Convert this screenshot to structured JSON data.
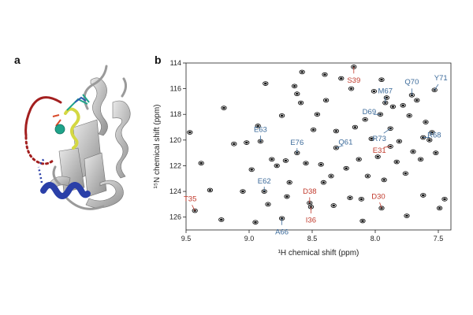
{
  "panels": {
    "a_label": "a",
    "b_label": "b"
  },
  "colors": {
    "blue_label": "#3b6a9a",
    "red_label": "#c0392b",
    "peak": "#111111",
    "ribbon_gray": "#bfbfbf",
    "loop_red": "#a31f1f",
    "helix_blue": "#2a3fa8",
    "ligand_yellow": "#d4d843",
    "ion_teal": "#1fa38a"
  },
  "chart_data": {
    "type": "scatter",
    "subtype": "2D 1H-15N HSQC spectrum",
    "xlabel": "¹H chemical shift (ppm)",
    "ylabel": "¹⁵N chemical shift (ppm)",
    "xlim": [
      9.5,
      7.4
    ],
    "ylim": [
      114,
      127
    ],
    "x_ticks": [
      "9.5",
      "9.0",
      "8.5",
      "8.0",
      "7.5"
    ],
    "x_tick_values": [
      9.5,
      9.0,
      8.5,
      8.0,
      7.5
    ],
    "y_ticks": [
      "114",
      "116",
      "118",
      "120",
      "122",
      "124",
      "126"
    ],
    "y_tick_values": [
      114,
      116,
      118,
      120,
      122,
      124,
      126
    ],
    "assignments": [
      {
        "label": "S39",
        "x": 8.17,
        "y": 114.3,
        "group": "red"
      },
      {
        "label": "M67",
        "x": 7.92,
        "y": 117.1,
        "group": "blue"
      },
      {
        "label": "Q70",
        "x": 7.71,
        "y": 116.5,
        "group": "blue"
      },
      {
        "label": "Y71",
        "x": 7.53,
        "y": 116.1,
        "group": "blue"
      },
      {
        "label": "D69",
        "x": 7.96,
        "y": 118.0,
        "group": "blue"
      },
      {
        "label": "R73",
        "x": 7.88,
        "y": 119.1,
        "group": "blue"
      },
      {
        "label": "R68",
        "x": 7.62,
        "y": 119.8,
        "group": "blue"
      },
      {
        "label": "E63",
        "x": 8.91,
        "y": 120.1,
        "group": "blue"
      },
      {
        "label": "E76",
        "x": 8.62,
        "y": 121.0,
        "group": "blue"
      },
      {
        "label": "Q61",
        "x": 8.31,
        "y": 120.6,
        "group": "blue"
      },
      {
        "label": "E31",
        "x": 7.88,
        "y": 120.5,
        "group": "red"
      },
      {
        "label": "E62",
        "x": 8.88,
        "y": 124.0,
        "group": "blue"
      },
      {
        "label": "D38",
        "x": 8.52,
        "y": 124.9,
        "group": "red"
      },
      {
        "label": "D30",
        "x": 7.95,
        "y": 125.3,
        "group": "red"
      },
      {
        "label": "T35",
        "x": 9.43,
        "y": 125.5,
        "group": "red"
      },
      {
        "label": "I36",
        "x": 8.51,
        "y": 125.2,
        "group": "red"
      },
      {
        "label": "A66",
        "x": 8.74,
        "y": 126.1,
        "group": "blue"
      }
    ],
    "unlabeled_peaks": [
      {
        "x": 9.47,
        "y": 119.4
      },
      {
        "x": 9.38,
        "y": 121.8
      },
      {
        "x": 9.31,
        "y": 123.9
      },
      {
        "x": 9.12,
        "y": 120.3
      },
      {
        "x": 9.05,
        "y": 124.0
      },
      {
        "x": 9.02,
        "y": 120.2
      },
      {
        "x": 8.98,
        "y": 122.3
      },
      {
        "x": 8.93,
        "y": 118.9
      },
      {
        "x": 8.87,
        "y": 115.6
      },
      {
        "x": 8.82,
        "y": 121.5
      },
      {
        "x": 8.78,
        "y": 122.0
      },
      {
        "x": 8.74,
        "y": 118.1
      },
      {
        "x": 8.71,
        "y": 121.6
      },
      {
        "x": 8.68,
        "y": 123.3
      },
      {
        "x": 8.64,
        "y": 115.8
      },
      {
        "x": 8.62,
        "y": 116.4
      },
      {
        "x": 8.59,
        "y": 117.1
      },
      {
        "x": 8.55,
        "y": 121.8
      },
      {
        "x": 8.49,
        "y": 119.2
      },
      {
        "x": 8.46,
        "y": 118.0
      },
      {
        "x": 8.43,
        "y": 121.9
      },
      {
        "x": 8.41,
        "y": 123.3
      },
      {
        "x": 8.39,
        "y": 116.9
      },
      {
        "x": 8.35,
        "y": 122.8
      },
      {
        "x": 8.31,
        "y": 119.3
      },
      {
        "x": 8.27,
        "y": 115.2
      },
      {
        "x": 8.23,
        "y": 122.2
      },
      {
        "x": 8.19,
        "y": 116.0
      },
      {
        "x": 8.16,
        "y": 119.0
      },
      {
        "x": 8.13,
        "y": 121.5
      },
      {
        "x": 8.11,
        "y": 124.6
      },
      {
        "x": 8.08,
        "y": 118.4
      },
      {
        "x": 8.06,
        "y": 122.8
      },
      {
        "x": 8.03,
        "y": 119.9
      },
      {
        "x": 8.01,
        "y": 116.2
      },
      {
        "x": 7.98,
        "y": 121.3
      },
      {
        "x": 7.93,
        "y": 123.1
      },
      {
        "x": 7.91,
        "y": 116.7
      },
      {
        "x": 7.86,
        "y": 117.4
      },
      {
        "x": 7.83,
        "y": 121.7
      },
      {
        "x": 7.81,
        "y": 120.1
      },
      {
        "x": 7.78,
        "y": 117.3
      },
      {
        "x": 7.76,
        "y": 122.6
      },
      {
        "x": 7.73,
        "y": 118.1
      },
      {
        "x": 7.7,
        "y": 120.9
      },
      {
        "x": 7.67,
        "y": 116.9
      },
      {
        "x": 7.64,
        "y": 121.5
      },
      {
        "x": 7.62,
        "y": 124.3
      },
      {
        "x": 7.6,
        "y": 118.6
      },
      {
        "x": 7.57,
        "y": 120.0
      },
      {
        "x": 7.55,
        "y": 119.4
      },
      {
        "x": 7.52,
        "y": 121.0
      },
      {
        "x": 7.49,
        "y": 125.3
      },
      {
        "x": 7.45,
        "y": 124.6
      },
      {
        "x": 8.85,
        "y": 125.0
      },
      {
        "x": 8.7,
        "y": 124.4
      },
      {
        "x": 8.33,
        "y": 125.1
      },
      {
        "x": 8.2,
        "y": 124.5
      },
      {
        "x": 9.22,
        "y": 126.2
      },
      {
        "x": 8.95,
        "y": 126.4
      },
      {
        "x": 8.1,
        "y": 126.3
      },
      {
        "x": 7.75,
        "y": 125.9
      },
      {
        "x": 8.58,
        "y": 114.7
      },
      {
        "x": 8.4,
        "y": 114.9
      },
      {
        "x": 7.95,
        "y": 115.3
      },
      {
        "x": 9.2,
        "y": 117.5
      }
    ]
  }
}
